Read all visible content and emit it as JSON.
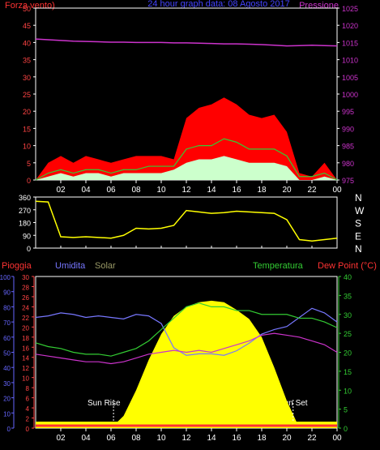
{
  "header": {
    "left_label": "Forza vento)",
    "center_label": "24 hour graph data: 08 Agosto 2017",
    "right_label": "Pressione"
  },
  "colors": {
    "wind_gust": "#ff0000",
    "wind_avg": "#33cc33",
    "wind_speed": "#ccffcc",
    "pressure": "#cc33cc",
    "direction": "#ffff00",
    "humidity": "#7777ff",
    "temperature": "#33cc33",
    "dewpoint": "#cc33cc",
    "solar": "#ffff00",
    "rain": "#ff3333",
    "axis": "#ffffff",
    "left_scale_text": "#ff4444",
    "humidity_scale_text": "#6666ff",
    "temp_scale_text": "#33cc33",
    "pressure_scale_text": "#cc33cc"
  },
  "x_ticks": [
    "02",
    "04",
    "06",
    "08",
    "10",
    "12",
    "14",
    "16",
    "18",
    "20",
    "22",
    "00"
  ],
  "chart_data": [
    {
      "type": "line",
      "panel": "wind",
      "title": "24 hour graph data: 08 Agosto 2017",
      "ylabel": "Forza vento)",
      "y2label": "Pressione",
      "ylim": [
        0,
        50
      ],
      "y2lim": [
        975,
        1025
      ],
      "y_ticks": [
        0,
        5,
        10,
        15,
        20,
        25,
        30,
        35,
        40,
        45,
        50
      ],
      "y2_ticks": [
        975,
        980,
        985,
        990,
        995,
        1000,
        1005,
        1010,
        1015,
        1020,
        1025
      ],
      "hours": [
        0,
        1,
        2,
        3,
        4,
        5,
        6,
        7,
        8,
        9,
        10,
        11,
        12,
        13,
        14,
        15,
        16,
        17,
        18,
        19,
        20,
        21,
        22,
        23,
        24
      ],
      "series": [
        {
          "key": "gust",
          "values": [
            0,
            5,
            7,
            5,
            7,
            6,
            5,
            6,
            7,
            7,
            7,
            6,
            18,
            21,
            22,
            24,
            22,
            19,
            18,
            19,
            14,
            2,
            1,
            5,
            0
          ]
        },
        {
          "key": "avg",
          "values": [
            0,
            2,
            3,
            2,
            3,
            3,
            2,
            3,
            3,
            4,
            4,
            4,
            9,
            10,
            10,
            12,
            11,
            9,
            9,
            9,
            7,
            1,
            1,
            2,
            0
          ]
        },
        {
          "key": "speed",
          "values": [
            0,
            1,
            2,
            1,
            2,
            2,
            1,
            2,
            2,
            2,
            2,
            3,
            5,
            6,
            6,
            7,
            6,
            5,
            5,
            5,
            4,
            0,
            0,
            1,
            0
          ]
        },
        {
          "key": "pressure",
          "values": [
            1016,
            1015.8,
            1015.6,
            1015.4,
            1015.3,
            1015.2,
            1015.1,
            1015.1,
            1015,
            1015,
            1015,
            1014.9,
            1014.9,
            1014.8,
            1014.7,
            1014.6,
            1014.6,
            1014.5,
            1014.4,
            1014.2,
            1014,
            1014.1,
            1014.2,
            1014.1,
            1014
          ]
        }
      ]
    },
    {
      "type": "line",
      "panel": "direction",
      "ylim": [
        0,
        360
      ],
      "y_ticks": [
        0,
        90,
        180,
        270,
        360
      ],
      "compass_labels": [
        "N",
        "W",
        "S",
        "E",
        "N"
      ],
      "hours": [
        0,
        1,
        2,
        3,
        4,
        5,
        6,
        7,
        8,
        9,
        10,
        11,
        12,
        13,
        14,
        15,
        16,
        17,
        18,
        19,
        20,
        21,
        22,
        23,
        24
      ],
      "series": [
        {
          "key": "direction",
          "values": [
            330,
            325,
            80,
            75,
            80,
            75,
            70,
            90,
            140,
            135,
            140,
            160,
            265,
            255,
            245,
            250,
            260,
            255,
            250,
            245,
            200,
            60,
            50,
            60,
            70
          ]
        }
      ]
    },
    {
      "type": "line",
      "panel": "lower",
      "labels": {
        "rain": "Pioggia",
        "humidity": "Umidita",
        "solar": "Solar",
        "temperature": "Temperatura",
        "dewpoint": "Dew Point (°C)",
        "sunrise": "Sun Rise",
        "sunset": "Sun Set"
      },
      "humidity_lim": [
        0,
        100
      ],
      "humidity_ticks": [
        0,
        10,
        20,
        30,
        40,
        50,
        60,
        70,
        80,
        90,
        100
      ],
      "rain_lim": [
        0,
        30
      ],
      "rain_ticks": [
        0,
        2,
        4,
        6,
        8,
        10,
        12,
        14,
        16,
        18,
        20,
        22,
        24,
        26,
        28,
        30
      ],
      "temp_lim": [
        0,
        40
      ],
      "temp_ticks": [
        0,
        5,
        10,
        15,
        20,
        25,
        30,
        35,
        40
      ],
      "hours": [
        0,
        1,
        2,
        3,
        4,
        5,
        6,
        7,
        8,
        9,
        10,
        11,
        12,
        13,
        14,
        15,
        16,
        17,
        18,
        19,
        20,
        21,
        22,
        23,
        24
      ],
      "sunrise_hour": 6.2,
      "sunset_hour": 20.5,
      "series": [
        {
          "key": "humidity",
          "values": [
            73,
            74,
            76,
            75,
            73,
            74,
            73,
            72,
            75,
            74,
            69,
            53,
            48,
            49,
            49,
            48,
            51,
            56,
            62,
            65,
            67,
            73,
            79,
            76,
            70
          ]
        },
        {
          "key": "temperature",
          "values": [
            22.5,
            21.5,
            21,
            20,
            19.5,
            19.5,
            19,
            20,
            21,
            23,
            26,
            29,
            32,
            33,
            32,
            32,
            31,
            31,
            30,
            30,
            30,
            29,
            29,
            28,
            26.5
          ]
        },
        {
          "key": "dewpoint",
          "values": [
            19.5,
            19,
            18.5,
            18,
            17.5,
            17.5,
            17,
            17.5,
            18.5,
            19.5,
            20,
            20.5,
            20,
            20.5,
            20,
            21,
            22,
            23,
            24.5,
            25,
            24.5,
            24,
            23,
            22,
            20
          ]
        },
        {
          "key": "solar",
          "values": [
            0,
            0,
            0,
            0,
            0,
            0,
            0,
            8,
            25,
            45,
            62,
            74,
            80,
            83,
            84,
            83,
            78,
            72,
            60,
            40,
            18,
            0,
            0,
            0,
            0
          ]
        },
        {
          "key": "rain",
          "values": [
            0,
            0,
            0,
            0,
            0,
            0,
            0,
            0,
            0,
            0,
            0,
            0,
            0,
            0,
            0,
            0,
            0,
            0,
            0,
            0,
            0,
            0,
            0,
            0,
            0
          ]
        }
      ]
    }
  ]
}
